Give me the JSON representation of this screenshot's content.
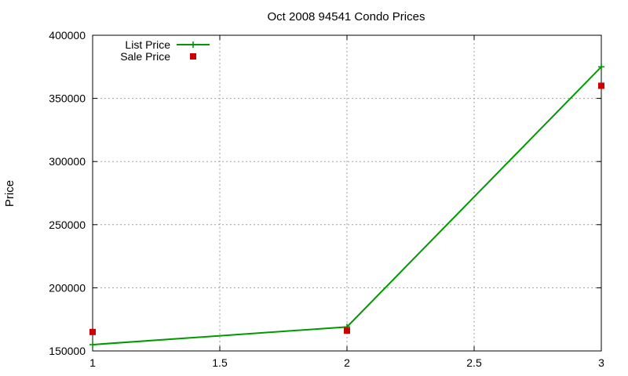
{
  "chart_data": {
    "type": "line",
    "title": "Oct 2008 94541 Condo Prices",
    "xlabel": "",
    "ylabel": "Price",
    "xlim": [
      1,
      3
    ],
    "ylim": [
      150000,
      400000
    ],
    "xticks": [
      "1",
      "1.5",
      "2",
      "2.5",
      "3"
    ],
    "yticks": [
      "150000",
      "200000",
      "250000",
      "300000",
      "350000",
      "400000"
    ],
    "grid": true,
    "legend_position": "top-left",
    "series": [
      {
        "name": "List Price",
        "style": "line+points",
        "marker": "plus",
        "color": "#009900",
        "x": [
          1,
          2,
          3
        ],
        "y": [
          155000,
          169000,
          375000
        ]
      },
      {
        "name": "Sale Price",
        "style": "points",
        "marker": "square",
        "color": "#cc0000",
        "x": [
          1,
          2,
          3
        ],
        "y": [
          165000,
          166000,
          360000
        ]
      }
    ]
  }
}
